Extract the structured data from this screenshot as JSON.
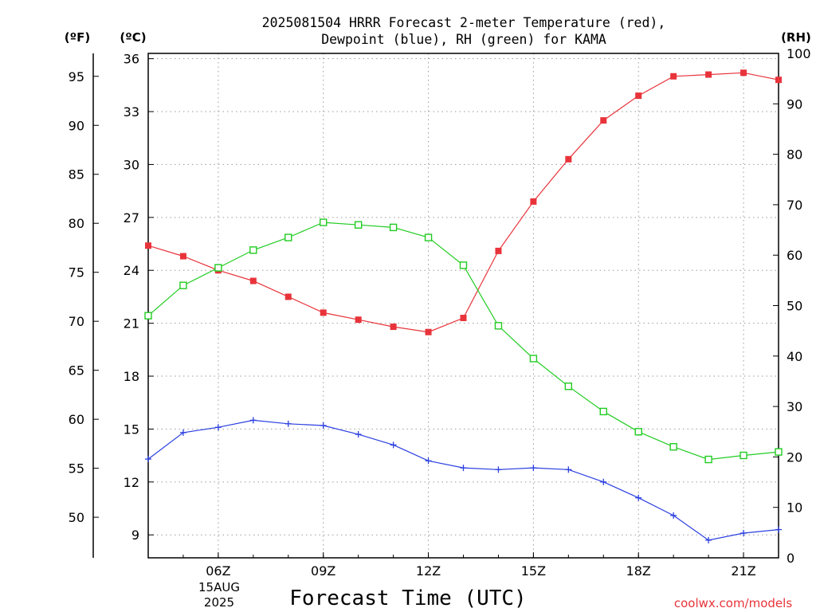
{
  "chart_data": {
    "type": "line",
    "title_line1": "2025081504 HRRR Forecast 2-meter Temperature (red),",
    "title_line2": "Dewpoint (blue), RH (green) for KAMA",
    "xlabel": "Forecast Time (UTC)",
    "unit_f": "(ºF)",
    "unit_c": "(ºC)",
    "unit_rh": "(RH)",
    "credit": "coolwx.com/models",
    "date_line1": "15AUG",
    "date_line2": "2025",
    "x": [
      4,
      5,
      6,
      7,
      8,
      9,
      10,
      11,
      12,
      13,
      14,
      15,
      16,
      17,
      18,
      19,
      20,
      21,
      22
    ],
    "xlim": [
      4,
      22
    ],
    "x_ticks": [
      {
        "x": 6,
        "label": "06Z"
      },
      {
        "x": 9,
        "label": "09Z"
      },
      {
        "x": 12,
        "label": "12Z"
      },
      {
        "x": 15,
        "label": "15Z"
      },
      {
        "x": 18,
        "label": "18Z"
      },
      {
        "x": 21,
        "label": "21Z"
      }
    ],
    "celsius_axis": {
      "ylim": [
        7.7,
        36.3
      ],
      "ticks": [
        "9",
        "12",
        "15",
        "18",
        "21",
        "24",
        "27",
        "30",
        "33",
        "36"
      ]
    },
    "fahrenheit_axis": {
      "ticks": [
        "50",
        "55",
        "60",
        "65",
        "70",
        "75",
        "80",
        "85",
        "90",
        "95"
      ]
    },
    "rh_axis": {
      "ylim": [
        0,
        100
      ],
      "ticks": [
        "0",
        "10",
        "20",
        "30",
        "40",
        "50",
        "60",
        "70",
        "80",
        "90",
        "100"
      ]
    },
    "grid": true,
    "series": [
      {
        "name": "2-meter Temperature",
        "color": "#e8333a",
        "marker": "filled-square",
        "axis": "celsius",
        "values": [
          25.4,
          24.8,
          24.0,
          23.4,
          22.5,
          21.6,
          21.2,
          20.8,
          20.5,
          21.3,
          25.1,
          27.9,
          30.3,
          32.5,
          33.9,
          35.0,
          35.1,
          35.2,
          34.8
        ]
      },
      {
        "name": "Dewpoint",
        "color": "#2b3fe0",
        "marker": "plus",
        "axis": "celsius",
        "values": [
          13.3,
          14.8,
          15.1,
          15.5,
          15.3,
          15.2,
          14.7,
          14.1,
          13.2,
          12.8,
          12.7,
          12.8,
          12.7,
          12.0,
          11.1,
          10.1,
          8.7,
          9.1,
          9.3
        ]
      },
      {
        "name": "RH",
        "color": "#22cc22",
        "marker": "open-square",
        "axis": "rh",
        "values": [
          48,
          54,
          57.5,
          61,
          63.5,
          66.5,
          66,
          65.5,
          63.5,
          58,
          46,
          39.5,
          34,
          29,
          25,
          22,
          19.5,
          20.3,
          21
        ]
      }
    ]
  }
}
